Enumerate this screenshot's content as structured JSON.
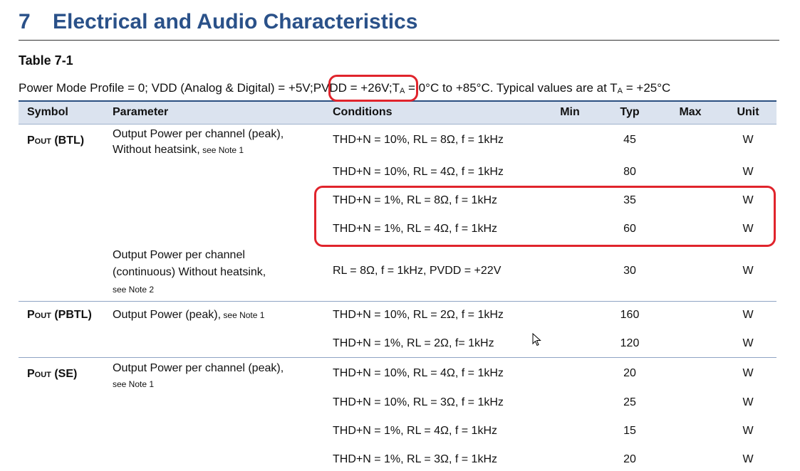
{
  "section": {
    "number": "7",
    "title": "Electrical and Audio Characteristics"
  },
  "table_title": "Table 7-1",
  "conditions": {
    "part1": "Power Mode Profile = 0; VDD (Analog & Digital) = +5V;",
    "pvdd": "PVDD = +26V;",
    "ta1": "T",
    "ta_sub": "A",
    "part2": " = 0°C to +85°C. Typical values are at T",
    "part3": " = +25°C"
  },
  "headers": {
    "symbol": "Symbol",
    "parameter": "Parameter",
    "conditions": "Conditions",
    "min": "Min",
    "typ": "Typ",
    "max": "Max",
    "unit": "Unit"
  },
  "groups": [
    {
      "symbol_main": "P",
      "symbol_sub": "OUT",
      "symbol_suffix": " (BTL)"
    },
    {
      "symbol_main": "P",
      "symbol_sub": "OUT",
      "symbol_suffix": " (PBTL)"
    },
    {
      "symbol_main": "P",
      "symbol_sub": "OUT",
      "symbol_suffix": " (SE)"
    }
  ],
  "parameters": [
    {
      "line1": "Output Power per channel (peak),",
      "line2": "Without heatsink,",
      "note": " see Note 1"
    },
    {
      "line1": "Output Power per channel",
      "line2": "(continuous) Without heatsink,",
      "note": "see Note 2"
    },
    {
      "line1": "Output Power (peak),",
      "note": " see Note 1"
    },
    {
      "line1": "Output Power per channel (peak),",
      "note": "see Note 1"
    }
  ],
  "rows": [
    {
      "conditions": "THD+N = 10%, RL = 8Ω, f = 1kHz",
      "min": "",
      "typ": "45",
      "max": "",
      "unit": "W"
    },
    {
      "conditions": "THD+N = 10%, RL = 4Ω, f = 1kHz",
      "min": "",
      "typ": "80",
      "max": "",
      "unit": "W"
    },
    {
      "conditions": "THD+N = 1%, RL = 8Ω, f = 1kHz",
      "min": "",
      "typ": "35",
      "max": "",
      "unit": "W"
    },
    {
      "conditions": "THD+N = 1%, RL = 4Ω, f = 1kHz",
      "min": "",
      "typ": "60",
      "max": "",
      "unit": "W"
    },
    {
      "conditions": "RL = 8Ω, f = 1kHz, PVDD = +22V",
      "min": "",
      "typ": "30",
      "max": "",
      "unit": "W"
    },
    {
      "conditions": "THD+N = 10%, RL = 2Ω, f = 1kHz",
      "min": "",
      "typ": "160",
      "max": "",
      "unit": "W"
    },
    {
      "conditions": "THD+N = 1%, RL = 2Ω, f= 1kHz",
      "min": "",
      "typ": "120",
      "max": "",
      "unit": "W"
    },
    {
      "conditions": "THD+N = 10%, RL = 4Ω, f = 1kHz",
      "min": "",
      "typ": "20",
      "max": "",
      "unit": "W"
    },
    {
      "conditions": "THD+N = 10%, RL = 3Ω, f = 1kHz",
      "min": "",
      "typ": "25",
      "max": "",
      "unit": "W"
    },
    {
      "conditions": "THD+N = 1%, RL = 4Ω, f = 1kHz",
      "min": "",
      "typ": "15",
      "max": "",
      "unit": "W"
    },
    {
      "conditions": "THD+N = 1%, RL = 3Ω, f = 1kHz",
      "min": "",
      "typ": "20",
      "max": "",
      "unit": "W"
    }
  ],
  "colors": {
    "heading": "#2a5189",
    "header_bg": "#dbe3ef",
    "highlight": "#e0242c"
  }
}
